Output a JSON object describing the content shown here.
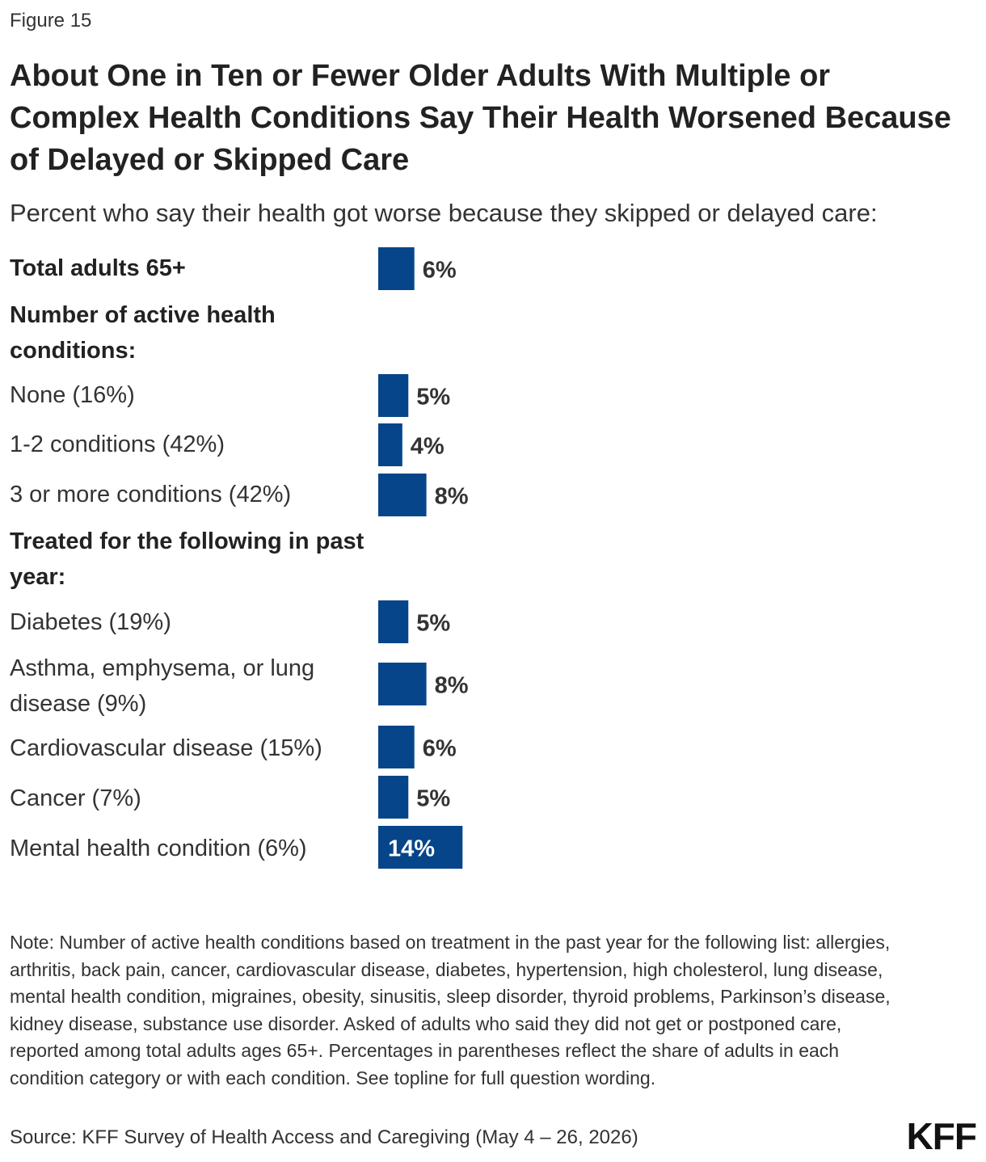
{
  "figure_label": "Figure 15",
  "title": "About One in Ten or Fewer Older Adults With Multiple or Complex Health Conditions Say Their Health Worsened Because of Delayed or Skipped Care",
  "subtitle": "Percent who say their health got worse because they skipped or delayed care:",
  "colors": {
    "bar": "#064589",
    "label_dark": "#333333",
    "label_light": "#ffffff"
  },
  "chart_data": {
    "type": "bar",
    "orientation": "horizontal",
    "unit": "%",
    "groups": [
      {
        "header": "",
        "rows": [
          {
            "label": "Total adults 65+",
            "value": 6,
            "bold": true
          }
        ]
      },
      {
        "header": "Number of active health conditions:",
        "rows": [
          {
            "label": "None (16%)",
            "value": 5
          },
          {
            "label": "1-2 conditions (42%)",
            "value": 4
          },
          {
            "label": "3 or more conditions (42%)",
            "value": 8
          }
        ]
      },
      {
        "header": "Treated for the following in past year:",
        "rows": [
          {
            "label": "Diabetes (19%)",
            "value": 5
          },
          {
            "label": "Asthma, emphysema, or lung disease (9%)",
            "value": 8
          },
          {
            "label": "Cardiovascular disease (15%)",
            "value": 6
          },
          {
            "label": "Cancer (7%)",
            "value": 5
          },
          {
            "label": "Mental health condition (6%)",
            "value": 14
          }
        ]
      }
    ],
    "value_labels": [
      "6%",
      "5%",
      "4%",
      "8%",
      "5%",
      "8%",
      "6%",
      "5%",
      "14%"
    ]
  },
  "note": "Note: Number of active health conditions based on treatment in the past year for the following list: allergies, arthritis, back pain, cancer, cardiovascular disease, diabetes, hypertension, high cholesterol, lung disease, mental health condition, migraines, obesity, sinusitis, sleep disorder, thyroid problems, Parkinson’s disease, kidney disease, substance use disorder. Asked of adults who said they did not get or postponed care, reported among total adults ages 65+. Percentages in parentheses reflect the share of adults in each condition category or with each condition. See topline for full question wording.",
  "source": "Source: KFF Survey of Health Access and Caregiving (May 4 – 26, 2026)",
  "logo": "KFF"
}
